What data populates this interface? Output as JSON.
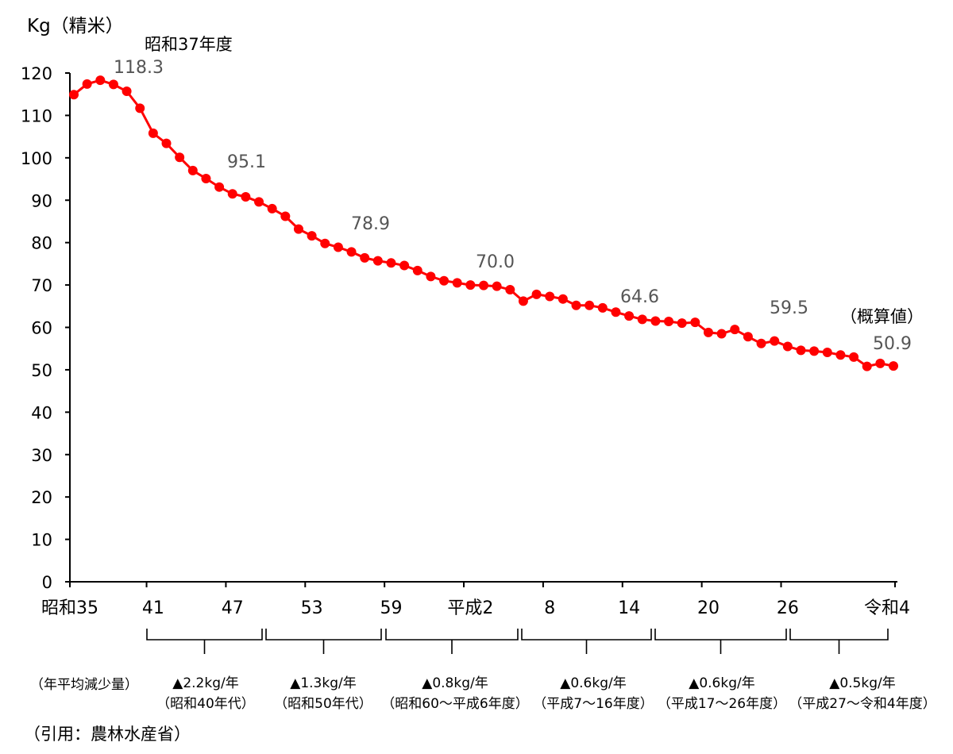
{
  "chart_data": {
    "type": "line",
    "ylabel": "Kg（精米）",
    "ylim": [
      0,
      120
    ],
    "yticks": [
      0,
      10,
      20,
      30,
      40,
      50,
      60,
      70,
      80,
      90,
      100,
      110,
      120
    ],
    "grid": false,
    "legend": "none",
    "series": [
      {
        "color": "#ff0000",
        "x": [
          "昭和35",
          "36",
          "37",
          "38",
          "39",
          "40",
          "41",
          "42",
          "43",
          "44",
          "45",
          "46",
          "47",
          "48",
          "49",
          "50",
          "51",
          "52",
          "53",
          "54",
          "55",
          "56",
          "57",
          "58",
          "59",
          "60",
          "61",
          "62",
          "63",
          "平成1",
          "平成2",
          "3",
          "4",
          "5",
          "6",
          "7",
          "8",
          "9",
          "10",
          "11",
          "12",
          "13",
          "14",
          "15",
          "16",
          "17",
          "18",
          "19",
          "20",
          "21",
          "22",
          "23",
          "24",
          "25",
          "26",
          "27",
          "28",
          "29",
          "30",
          "令和1",
          "令和2",
          "令和3",
          "令和4"
        ],
        "values": [
          114.9,
          117.4,
          118.3,
          117.3,
          115.7,
          111.7,
          105.8,
          103.4,
          100.1,
          97.0,
          95.1,
          93.1,
          91.5,
          90.8,
          89.6,
          88.0,
          86.2,
          83.2,
          81.6,
          79.8,
          78.9,
          77.8,
          76.4,
          75.7,
          75.2,
          74.6,
          73.4,
          72.0,
          71.0,
          70.5,
          70.0,
          69.9,
          69.7,
          68.9,
          66.2,
          67.8,
          67.3,
          66.7,
          65.2,
          65.2,
          64.6,
          63.6,
          62.7,
          61.9,
          61.5,
          61.4,
          61.0,
          61.2,
          58.8,
          58.5,
          59.5,
          57.8,
          56.2,
          56.8,
          55.5,
          54.6,
          54.4,
          54.1,
          53.5,
          53.0,
          50.8,
          51.5,
          50.9
        ]
      }
    ],
    "xtick_labels": [
      "昭和35",
      "41",
      "47",
      "53",
      "59",
      "平成2",
      "8",
      "14",
      "20",
      "26",
      "令和4"
    ],
    "annotations": {
      "peak_year": "昭和37年度",
      "peak_value": "118.3",
      "v_s45": "95.1",
      "v_s55": "78.9",
      "v_h2": "70.0",
      "v_h12": "64.6",
      "v_h22": "59.5",
      "estimate": "（概算値）",
      "last_value": "50.9"
    },
    "decline_label": "（年平均減少量）",
    "decline_periods": [
      {
        "amount": "▲2.2kg/年",
        "period": "（昭和40年代）"
      },
      {
        "amount": "▲1.3kg/年",
        "period": "（昭和50年代）"
      },
      {
        "amount": "▲0.8kg/年",
        "period": "（昭和60～平成6年度）"
      },
      {
        "amount": "▲0.6kg/年",
        "period": "（平成7～16年度）"
      },
      {
        "amount": "▲0.6kg/年",
        "period": "（平成17～26年度）"
      },
      {
        "amount": "▲0.5kg/年",
        "period": "（平成27～令和4年度）"
      }
    ],
    "source": "（引用：農林水産省）"
  }
}
